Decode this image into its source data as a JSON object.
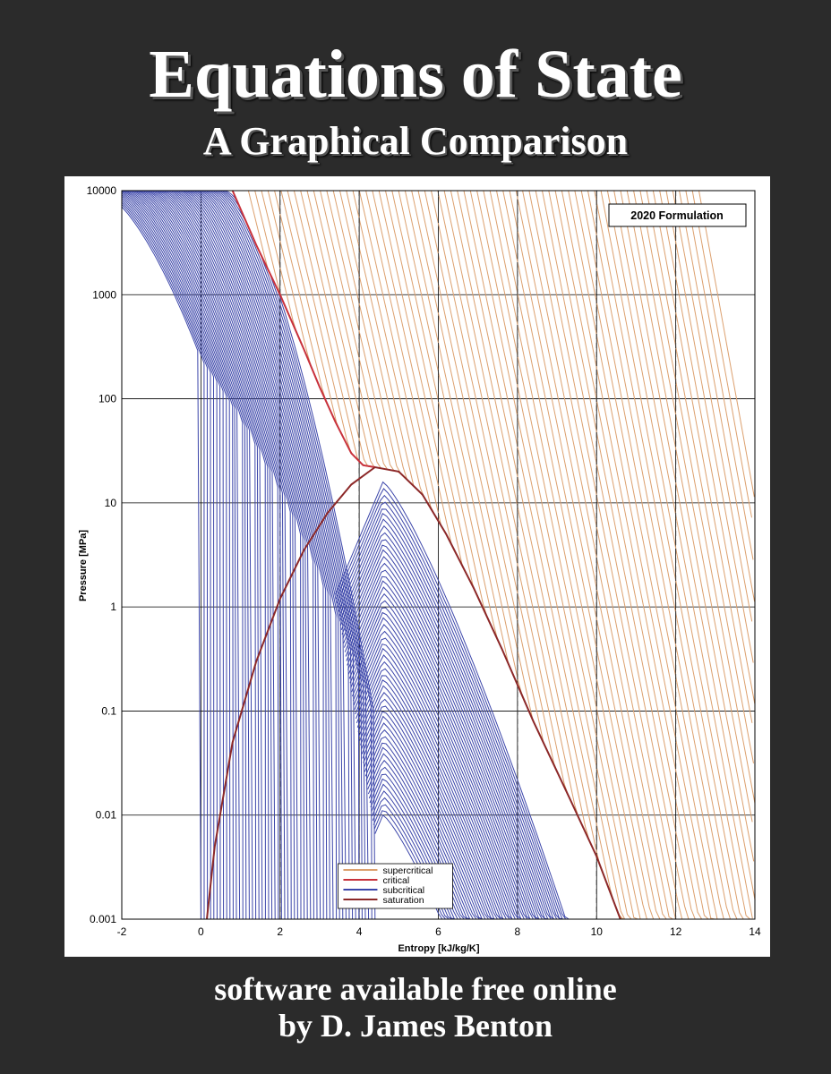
{
  "cover": {
    "title": "Equations of State",
    "subtitle": "A Graphical Comparison",
    "footer_line1": "software available free online",
    "footer_line2": "by D. James Benton"
  },
  "chart_data": {
    "type": "line",
    "xlabel": "Entropy [kJ/kg/K]",
    "ylabel": "Pressure [MPa]",
    "xlim": [
      -2,
      14
    ],
    "ylim": [
      0.001,
      10000
    ],
    "y_scale": "log",
    "grid": true,
    "x_ticks": [
      "-2",
      "0",
      "2",
      "4",
      "6",
      "8",
      "10",
      "12",
      "14"
    ],
    "y_ticks": [
      "10000",
      "1000",
      "100",
      "10",
      "1",
      "0.1",
      "0.01",
      "0.001"
    ],
    "annotation": "2020 Formulation",
    "legend_position": "bottom-center",
    "colors": {
      "supercritical": "#dca06e",
      "critical": "#c8323c",
      "subcritical": "#3c46aa",
      "saturation": "#8c2828"
    },
    "series": [
      {
        "name": "supercritical",
        "color": "#dca06e"
      },
      {
        "name": "critical",
        "color": "#c8323c",
        "points": [
          [
            0.8,
            10000
          ],
          [
            1.4,
            3000
          ],
          [
            2.0,
            1000
          ],
          [
            2.6,
            300
          ],
          [
            3.0,
            130
          ],
          [
            3.4,
            60
          ],
          [
            3.8,
            30
          ],
          [
            4.1,
            23
          ],
          [
            4.4,
            22
          ]
        ]
      },
      {
        "name": "subcritical",
        "color": "#3c46aa"
      },
      {
        "name": "saturation",
        "color": "#8c2828",
        "points": [
          [
            0.15,
            0.001
          ],
          [
            0.35,
            0.005
          ],
          [
            0.8,
            0.05
          ],
          [
            1.4,
            0.3
          ],
          [
            2.0,
            1.2
          ],
          [
            2.6,
            3.5
          ],
          [
            3.2,
            8
          ],
          [
            3.8,
            15
          ],
          [
            4.4,
            22
          ],
          [
            5.0,
            20
          ],
          [
            5.6,
            12
          ],
          [
            6.2,
            5
          ],
          [
            6.9,
            1.5
          ],
          [
            7.6,
            0.4
          ],
          [
            8.4,
            0.08
          ],
          [
            9.3,
            0.015
          ],
          [
            10.0,
            0.004
          ],
          [
            10.6,
            0.001
          ]
        ]
      }
    ]
  }
}
